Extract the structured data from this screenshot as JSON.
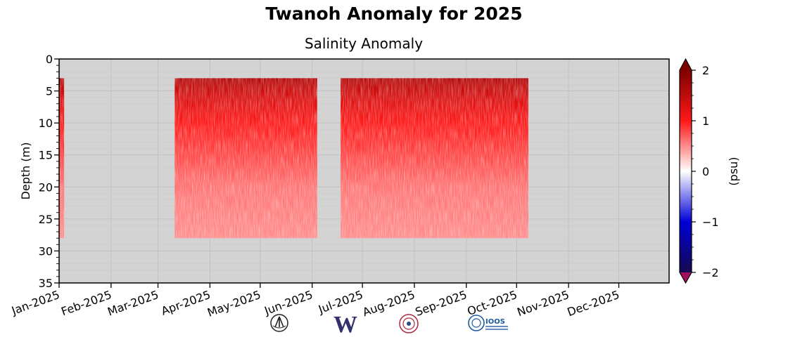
{
  "title": "Twanoh Anomaly for 2025",
  "chart_data": {
    "type": "heatmap",
    "title": "Salinity Anomaly",
    "xlabel": "",
    "ylabel": "Depth (m)",
    "x_tick_labels": [
      "Jan-2025",
      "Feb-2025",
      "Mar-2025",
      "Apr-2025",
      "May-2025",
      "Jun-2025",
      "Jul-2025",
      "Aug-2025",
      "Sep-2025",
      "Oct-2025",
      "Nov-2025",
      "Dec-2025"
    ],
    "y_ticks": [
      0,
      5,
      10,
      15,
      20,
      25,
      30,
      35
    ],
    "ylim": [
      35,
      0
    ],
    "xlim": [
      "2025-01-01",
      "2025-12-31"
    ],
    "grid": true,
    "missing_color": "#d3d3d3",
    "colorbar": {
      "label": "(psu)",
      "ticks": [
        2,
        1,
        0,
        -1,
        -2
      ],
      "range": [
        -2,
        2
      ],
      "colors": [
        "#140a4e",
        "#0000d8",
        "#ffffff",
        "#ff1818",
        "#800000"
      ],
      "extend_high": "#800000",
      "extend_low": "#a0105c"
    },
    "data_segments": [
      {
        "start": "2025-01-01",
        "end": "2025-01-04",
        "depth_top": 3,
        "depth_bottom": 28
      },
      {
        "start": "2025-03-11",
        "end": "2025-06-04",
        "depth_top": 3,
        "depth_bottom": 28
      },
      {
        "start": "2025-06-18",
        "end": "2025-10-08",
        "depth_top": 3,
        "depth_bottom": 28
      }
    ],
    "depth_profile": [
      {
        "depth": 3,
        "anomaly": 1.6
      },
      {
        "depth": 6,
        "anomaly": 1.3
      },
      {
        "depth": 10,
        "anomaly": 1.0
      },
      {
        "depth": 15,
        "anomaly": 0.8
      },
      {
        "depth": 20,
        "anomaly": 0.6
      },
      {
        "depth": 28,
        "anomaly": 0.5
      }
    ]
  },
  "logos": [
    "tripod-logo",
    "uw-logo",
    "tribal-logo",
    "ioos-logo"
  ],
  "logo_text": {
    "uw": "W",
    "ioos": "IOOS"
  }
}
